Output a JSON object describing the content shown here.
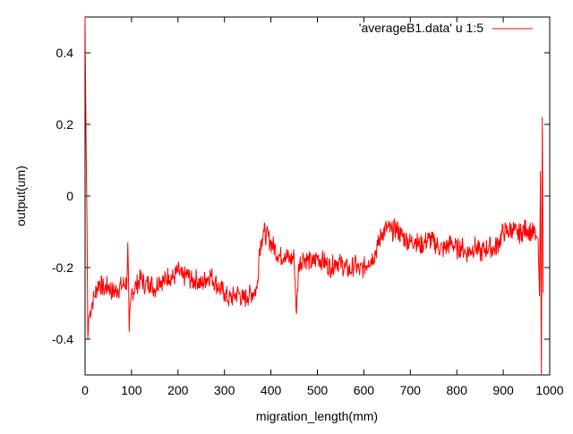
{
  "chart_data": {
    "type": "line",
    "xlabel": "migration_length(mm)",
    "ylabel": "output(um)",
    "xlim": [
      0,
      1000
    ],
    "ylim": [
      -0.5,
      0.5
    ],
    "xticks": [
      0,
      100,
      200,
      300,
      400,
      500,
      600,
      700,
      800,
      900,
      1000
    ],
    "yticks": [
      -0.4,
      -0.2,
      0,
      0.2,
      0.4
    ],
    "xtick_labels": [
      "0",
      "100",
      "200",
      "300",
      "400",
      "500",
      "600",
      "700",
      "800",
      "900",
      "1000"
    ],
    "ytick_labels": [
      "-0.4",
      "-0.2",
      "0",
      "0.2",
      "0.4"
    ],
    "grid": false,
    "legend_position": "top-right",
    "series": [
      {
        "name": "'averageB1.data' u 1:5",
        "color": "#ff0000",
        "x": [
          0,
          2,
          4,
          6,
          8,
          10,
          15,
          20,
          30,
          40,
          50,
          60,
          70,
          80,
          90,
          92,
          95,
          100,
          110,
          120,
          130,
          140,
          150,
          160,
          170,
          180,
          190,
          200,
          210,
          220,
          230,
          240,
          250,
          260,
          270,
          280,
          290,
          300,
          310,
          320,
          330,
          340,
          350,
          360,
          370,
          375,
          380,
          385,
          390,
          400,
          410,
          420,
          430,
          440,
          450,
          455,
          460,
          470,
          480,
          490,
          500,
          510,
          520,
          530,
          540,
          550,
          560,
          570,
          580,
          590,
          600,
          610,
          620,
          630,
          640,
          650,
          660,
          670,
          680,
          690,
          700,
          710,
          720,
          730,
          740,
          750,
          760,
          770,
          780,
          790,
          800,
          810,
          820,
          830,
          840,
          850,
          860,
          870,
          880,
          890,
          900,
          910,
          920,
          930,
          940,
          950,
          960,
          970,
          975,
          978,
          980,
          982,
          984,
          986
        ],
        "y": [
          0.5,
          0.18,
          -0.05,
          -0.4,
          -0.34,
          -0.33,
          -0.3,
          -0.28,
          -0.24,
          -0.26,
          -0.25,
          -0.27,
          -0.26,
          -0.25,
          -0.24,
          -0.13,
          -0.38,
          -0.27,
          -0.25,
          -0.23,
          -0.25,
          -0.24,
          -0.26,
          -0.23,
          -0.24,
          -0.22,
          -0.23,
          -0.21,
          -0.23,
          -0.22,
          -0.24,
          -0.23,
          -0.25,
          -0.23,
          -0.22,
          -0.24,
          -0.26,
          -0.27,
          -0.29,
          -0.28,
          -0.27,
          -0.29,
          -0.28,
          -0.27,
          -0.26,
          -0.15,
          -0.12,
          -0.1,
          -0.11,
          -0.13,
          -0.15,
          -0.17,
          -0.16,
          -0.18,
          -0.17,
          -0.33,
          -0.19,
          -0.17,
          -0.18,
          -0.19,
          -0.17,
          -0.18,
          -0.19,
          -0.2,
          -0.18,
          -0.19,
          -0.2,
          -0.21,
          -0.19,
          -0.21,
          -0.2,
          -0.18,
          -0.17,
          -0.14,
          -0.1,
          -0.09,
          -0.1,
          -0.09,
          -0.11,
          -0.12,
          -0.13,
          -0.12,
          -0.14,
          -0.13,
          -0.12,
          -0.13,
          -0.14,
          -0.15,
          -0.14,
          -0.13,
          -0.15,
          -0.14,
          -0.16,
          -0.15,
          -0.14,
          -0.16,
          -0.15,
          -0.14,
          -0.15,
          -0.13,
          -0.1,
          -0.1,
          -0.09,
          -0.11,
          -0.1,
          -0.09,
          -0.1,
          -0.11,
          -0.12,
          -0.28,
          0.07,
          -0.5,
          0.22,
          -0.27
        ]
      }
    ]
  }
}
